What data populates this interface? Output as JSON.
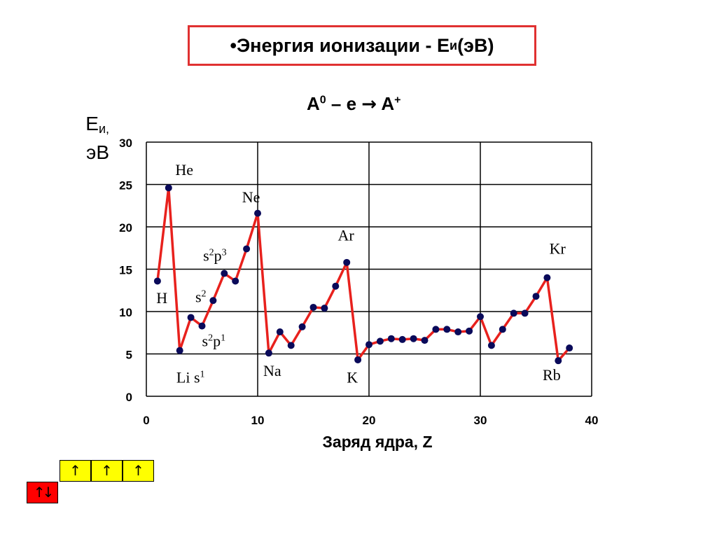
{
  "title": "Энергия ионизации - E",
  "title_prefix": "•",
  "title_sub": "и",
  "title_suffix": " (эВ)",
  "subtitle": {
    "base": "A",
    "sup0": "0",
    "mid": " – e ",
    "arrow": "→",
    "end": " A",
    "sup1": "+"
  },
  "ylabel": {
    "line1": "E",
    "sub": "и,",
    "line2": "эВ"
  },
  "chart_data": {
    "type": "line",
    "xlabel": "Заряд ядра, Z",
    "xlim": [
      0,
      40
    ],
    "ylim": [
      0,
      30
    ],
    "xticks": [
      0,
      10,
      20,
      30,
      40
    ],
    "yticks": [
      0,
      5,
      10,
      15,
      20,
      25,
      30
    ],
    "grid": true,
    "line_color": "#e8211d",
    "marker_color": "#0a0a5a",
    "series": [
      {
        "x": [
          1,
          2,
          3,
          4,
          5,
          6,
          7,
          8,
          9,
          10,
          11,
          12,
          13,
          14,
          15,
          16,
          17,
          18,
          19,
          20,
          21,
          22,
          23,
          24,
          25,
          26,
          27,
          28,
          29,
          30,
          31,
          32,
          33,
          34,
          35,
          36,
          37,
          38
        ],
        "y": [
          13.6,
          24.6,
          5.4,
          9.3,
          8.3,
          11.3,
          14.5,
          13.6,
          17.4,
          21.6,
          5.1,
          7.6,
          6.0,
          8.2,
          10.5,
          10.4,
          13.0,
          15.8,
          4.3,
          6.1,
          6.5,
          6.8,
          6.7,
          6.8,
          6.6,
          7.9,
          7.9,
          7.6,
          7.7,
          9.4,
          6.0,
          7.9,
          9.8,
          9.8,
          11.8,
          14.0,
          4.2,
          5.7
        ]
      }
    ],
    "annotations": [
      {
        "text": "He",
        "x": 2.6,
        "y": 26.1
      },
      {
        "text": "Ne",
        "x": 8.6,
        "y": 22.9
      },
      {
        "text": "Ar",
        "x": 17.2,
        "y": 18.4
      },
      {
        "text": "Kr",
        "x": 36.2,
        "y": 16.8
      },
      {
        "text": "H",
        "x": 0.9,
        "y": 11.0
      },
      {
        "text": "Na",
        "x": 10.5,
        "y": 2.4
      },
      {
        "text": "K",
        "x": 18.0,
        "y": 1.6
      },
      {
        "text": "Rb",
        "x": 35.6,
        "y": 1.9
      },
      {
        "text": "Li s",
        "sup": "1",
        "x": 2.7,
        "y": 1.6
      },
      {
        "text": "s",
        "sup": "2",
        "x": 4.4,
        "y": 11.1
      },
      {
        "text": "s",
        "sup": "2",
        "text2": "p",
        "sup2": "1",
        "x": 5.0,
        "y": 5.9
      },
      {
        "text": "s",
        "sup": "2",
        "text2": "p",
        "sup2": "3",
        "x": 5.1,
        "y": 16.0
      }
    ]
  },
  "orbitals": {
    "top_row": [
      "↑",
      "↑",
      "↑"
    ],
    "bottom_row": [
      "↑↓"
    ],
    "top_color": "#ffff00",
    "bottom_color": "#ff0000"
  }
}
